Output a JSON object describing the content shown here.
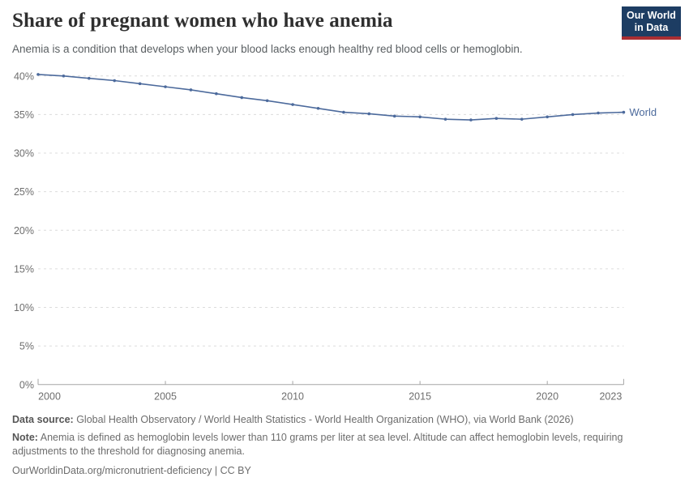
{
  "header": {
    "title": "Share of pregnant women who have anemia",
    "subtitle": "Anemia is a condition that develops when your blood lacks enough healthy red blood cells or hemoglobin.",
    "logo": {
      "line1": "Our World",
      "line2": "in Data",
      "bg_color": "#1d3d63",
      "accent_color": "#a92e33"
    }
  },
  "chart_data": {
    "type": "line",
    "title": "Share of pregnant women who have anemia",
    "xlabel": "",
    "ylabel": "",
    "x": [
      2000,
      2001,
      2002,
      2003,
      2004,
      2005,
      2006,
      2007,
      2008,
      2009,
      2010,
      2011,
      2012,
      2013,
      2014,
      2015,
      2016,
      2017,
      2018,
      2019,
      2020,
      2021,
      2022,
      2023
    ],
    "series": [
      {
        "name": "World",
        "color": "#4c6a9c",
        "values": [
          40.2,
          40.0,
          39.7,
          39.4,
          39.0,
          38.6,
          38.2,
          37.7,
          37.2,
          36.8,
          36.3,
          35.8,
          35.3,
          35.1,
          34.8,
          34.7,
          34.4,
          34.3,
          34.5,
          34.4,
          34.7,
          35.0,
          35.2,
          35.3
        ]
      }
    ],
    "x_ticks": [
      2000,
      2005,
      2010,
      2015,
      2020,
      2023
    ],
    "y_ticks": [
      0,
      5,
      10,
      15,
      20,
      25,
      30,
      35,
      40
    ],
    "y_tick_suffix": "%",
    "ylim": [
      0,
      40
    ],
    "grid": "horizontal-dashed",
    "legend": "end-of-line-label",
    "grid_color": "#dcdcdc",
    "axis_color": "#a5a5a5",
    "tick_label_color": "#6e6e6e"
  },
  "footer": {
    "data_source_label": "Data source:",
    "data_source_text": " Global Health Observatory / World Health Statistics - World Health Organization (WHO), via World Bank (2026)",
    "note_label": "Note:",
    "note_text": " Anemia is defined as hemoglobin levels lower than 110 grams per liter at sea level. Altitude can affect hemoglobin levels, requiring adjustments to the threshold for diagnosing anemia.",
    "url_line": "OurWorldinData.org/micronutrient-deficiency | CC BY"
  }
}
